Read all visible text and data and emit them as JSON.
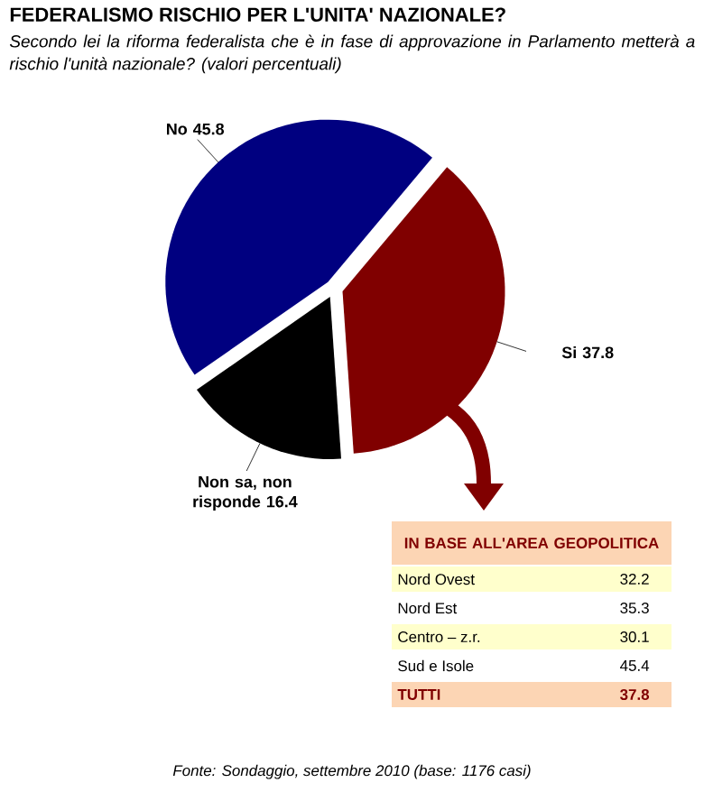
{
  "chart_data": {
    "type": "pie",
    "title": "FEDERALISMO RISCHIO PER L'UNITA' NAZIONALE?",
    "subtitle": "Secondo lei la riforma federalista che è in fase di approvazione in Parlamento metterà a rischio l'unità nazionale? (valori percentuali)",
    "categories": [
      "Si",
      "Non sa, non risponde",
      "No"
    ],
    "values": [
      37.8,
      16.4,
      45.8
    ],
    "colors": [
      "#800000",
      "#000000",
      "#000080"
    ],
    "data_labels": true,
    "annotations": [
      "IN BASE ALL'AREA GEOPOLITICA",
      "Nord Ovest",
      "32.2",
      "Nord Est",
      "35.3",
      "Centro – z.r.",
      "30.1",
      "Sud e Isole",
      "45.4",
      "TUTTI",
      "37.8",
      "Fonte: Sondaggio, settembre 2010 (base: 1176 casi)"
    ]
  }
}
